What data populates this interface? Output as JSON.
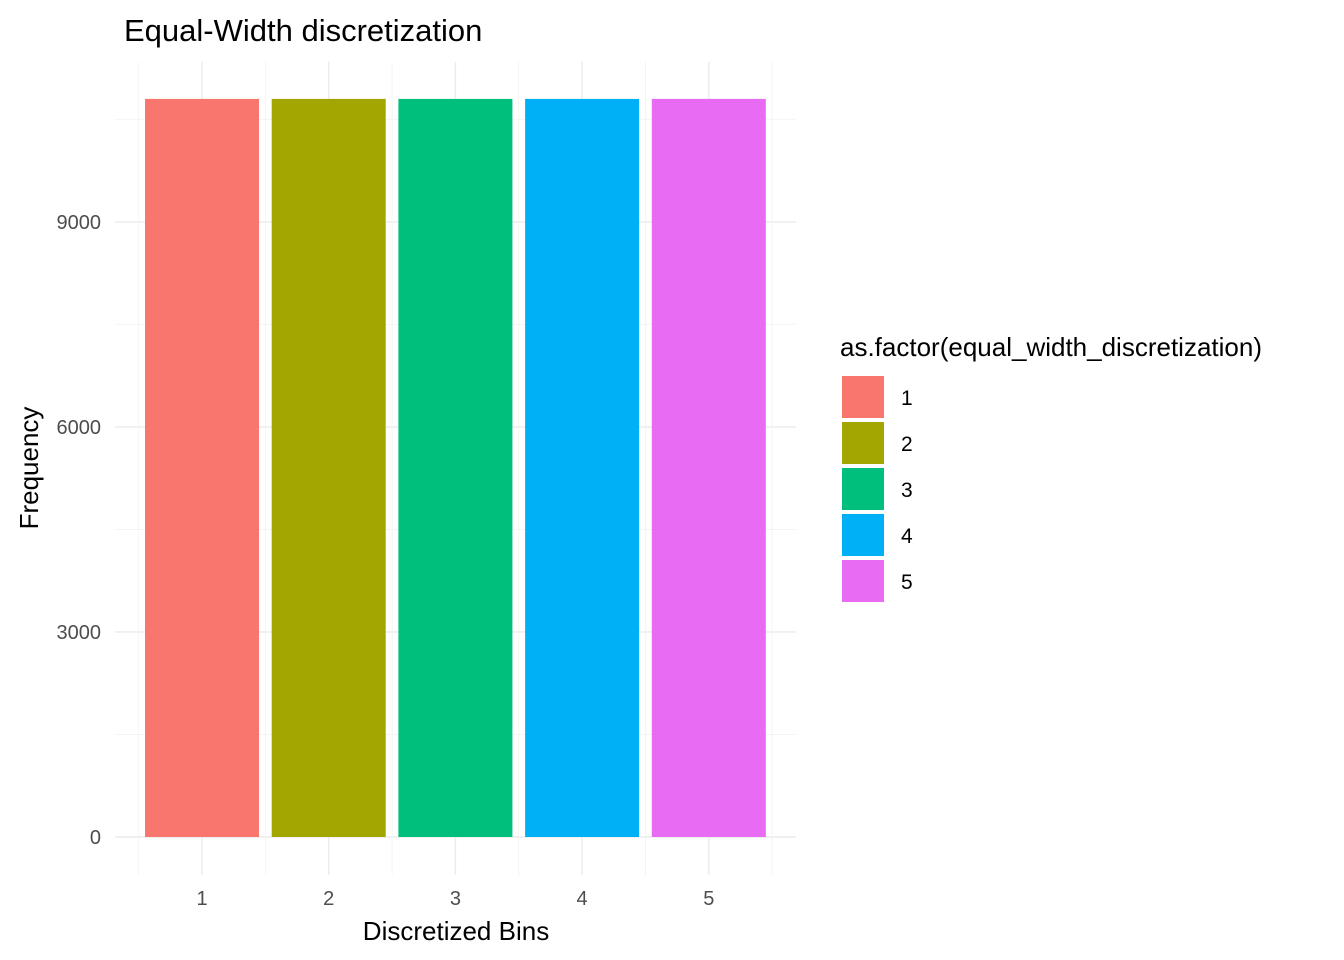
{
  "chart_data": {
    "type": "bar",
    "title": "Equal-Width discretization",
    "xlabel": "Discretized Bins",
    "ylabel": "Frequency",
    "categories": [
      "1",
      "2",
      "3",
      "4",
      "5"
    ],
    "values": [
      10800,
      10800,
      10800,
      10800,
      10800
    ],
    "colors": [
      "#F8766D",
      "#A3A500",
      "#00BF7D",
      "#00B0F6",
      "#E76BF3"
    ],
    "ylim": [
      0,
      11340
    ],
    "y_ticks": [
      0,
      3000,
      6000,
      9000
    ],
    "grid": true,
    "legend": {
      "title": "as.factor(equal_width_discretization)",
      "placement": "right",
      "entries": [
        "1",
        "2",
        "3",
        "4",
        "5"
      ]
    }
  }
}
